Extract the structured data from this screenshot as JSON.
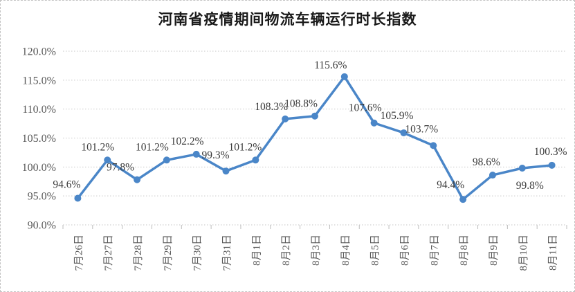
{
  "chart_data": {
    "type": "line",
    "title": "河南省疫情期间物流车辆运行时长指数",
    "categories": [
      "7月26日",
      "7月27日",
      "7月28日",
      "7月29日",
      "7月30日",
      "7月31日",
      "8月1日",
      "8月2日",
      "8月3日",
      "8月4日",
      "8月5日",
      "8月6日",
      "8月7日",
      "8月8日",
      "8月9日",
      "8月10日",
      "8月11日"
    ],
    "values": [
      94.6,
      101.2,
      97.8,
      101.2,
      102.2,
      99.3,
      101.2,
      108.3,
      108.8,
      115.6,
      107.6,
      105.9,
      103.7,
      94.4,
      98.6,
      99.8,
      100.3
    ],
    "point_labels": [
      "94.6%",
      "101.2%",
      "97.8%",
      "101.2%",
      "102.2%",
      "99.3%",
      "101.2%",
      "108.3%",
      "108.8%",
      "115.6%",
      "107.6%",
      "105.9%",
      "103.7%",
      "94.4%",
      "98.6%",
      "99.8%",
      "100.3%"
    ],
    "xlabel": "",
    "ylabel": "",
    "ylim": [
      90,
      120
    ],
    "ytick_step": 5,
    "ytick_labels": [
      "120.0%",
      "115.0%",
      "110.0%",
      "105.0%",
      "100.0%",
      "95.0%",
      "90.0%"
    ],
    "grid": "horizontal-dotted",
    "legend_position": "none",
    "marker": "circle",
    "colors": {
      "line": "#4A86C8",
      "grid": "#C6C6C6",
      "tick": "#BDBDBD",
      "axis_text": "#595959",
      "data_label_text": "#3A3A3A",
      "title_text": "#1A1A1A",
      "frame_border": "#C3C3C3"
    }
  }
}
